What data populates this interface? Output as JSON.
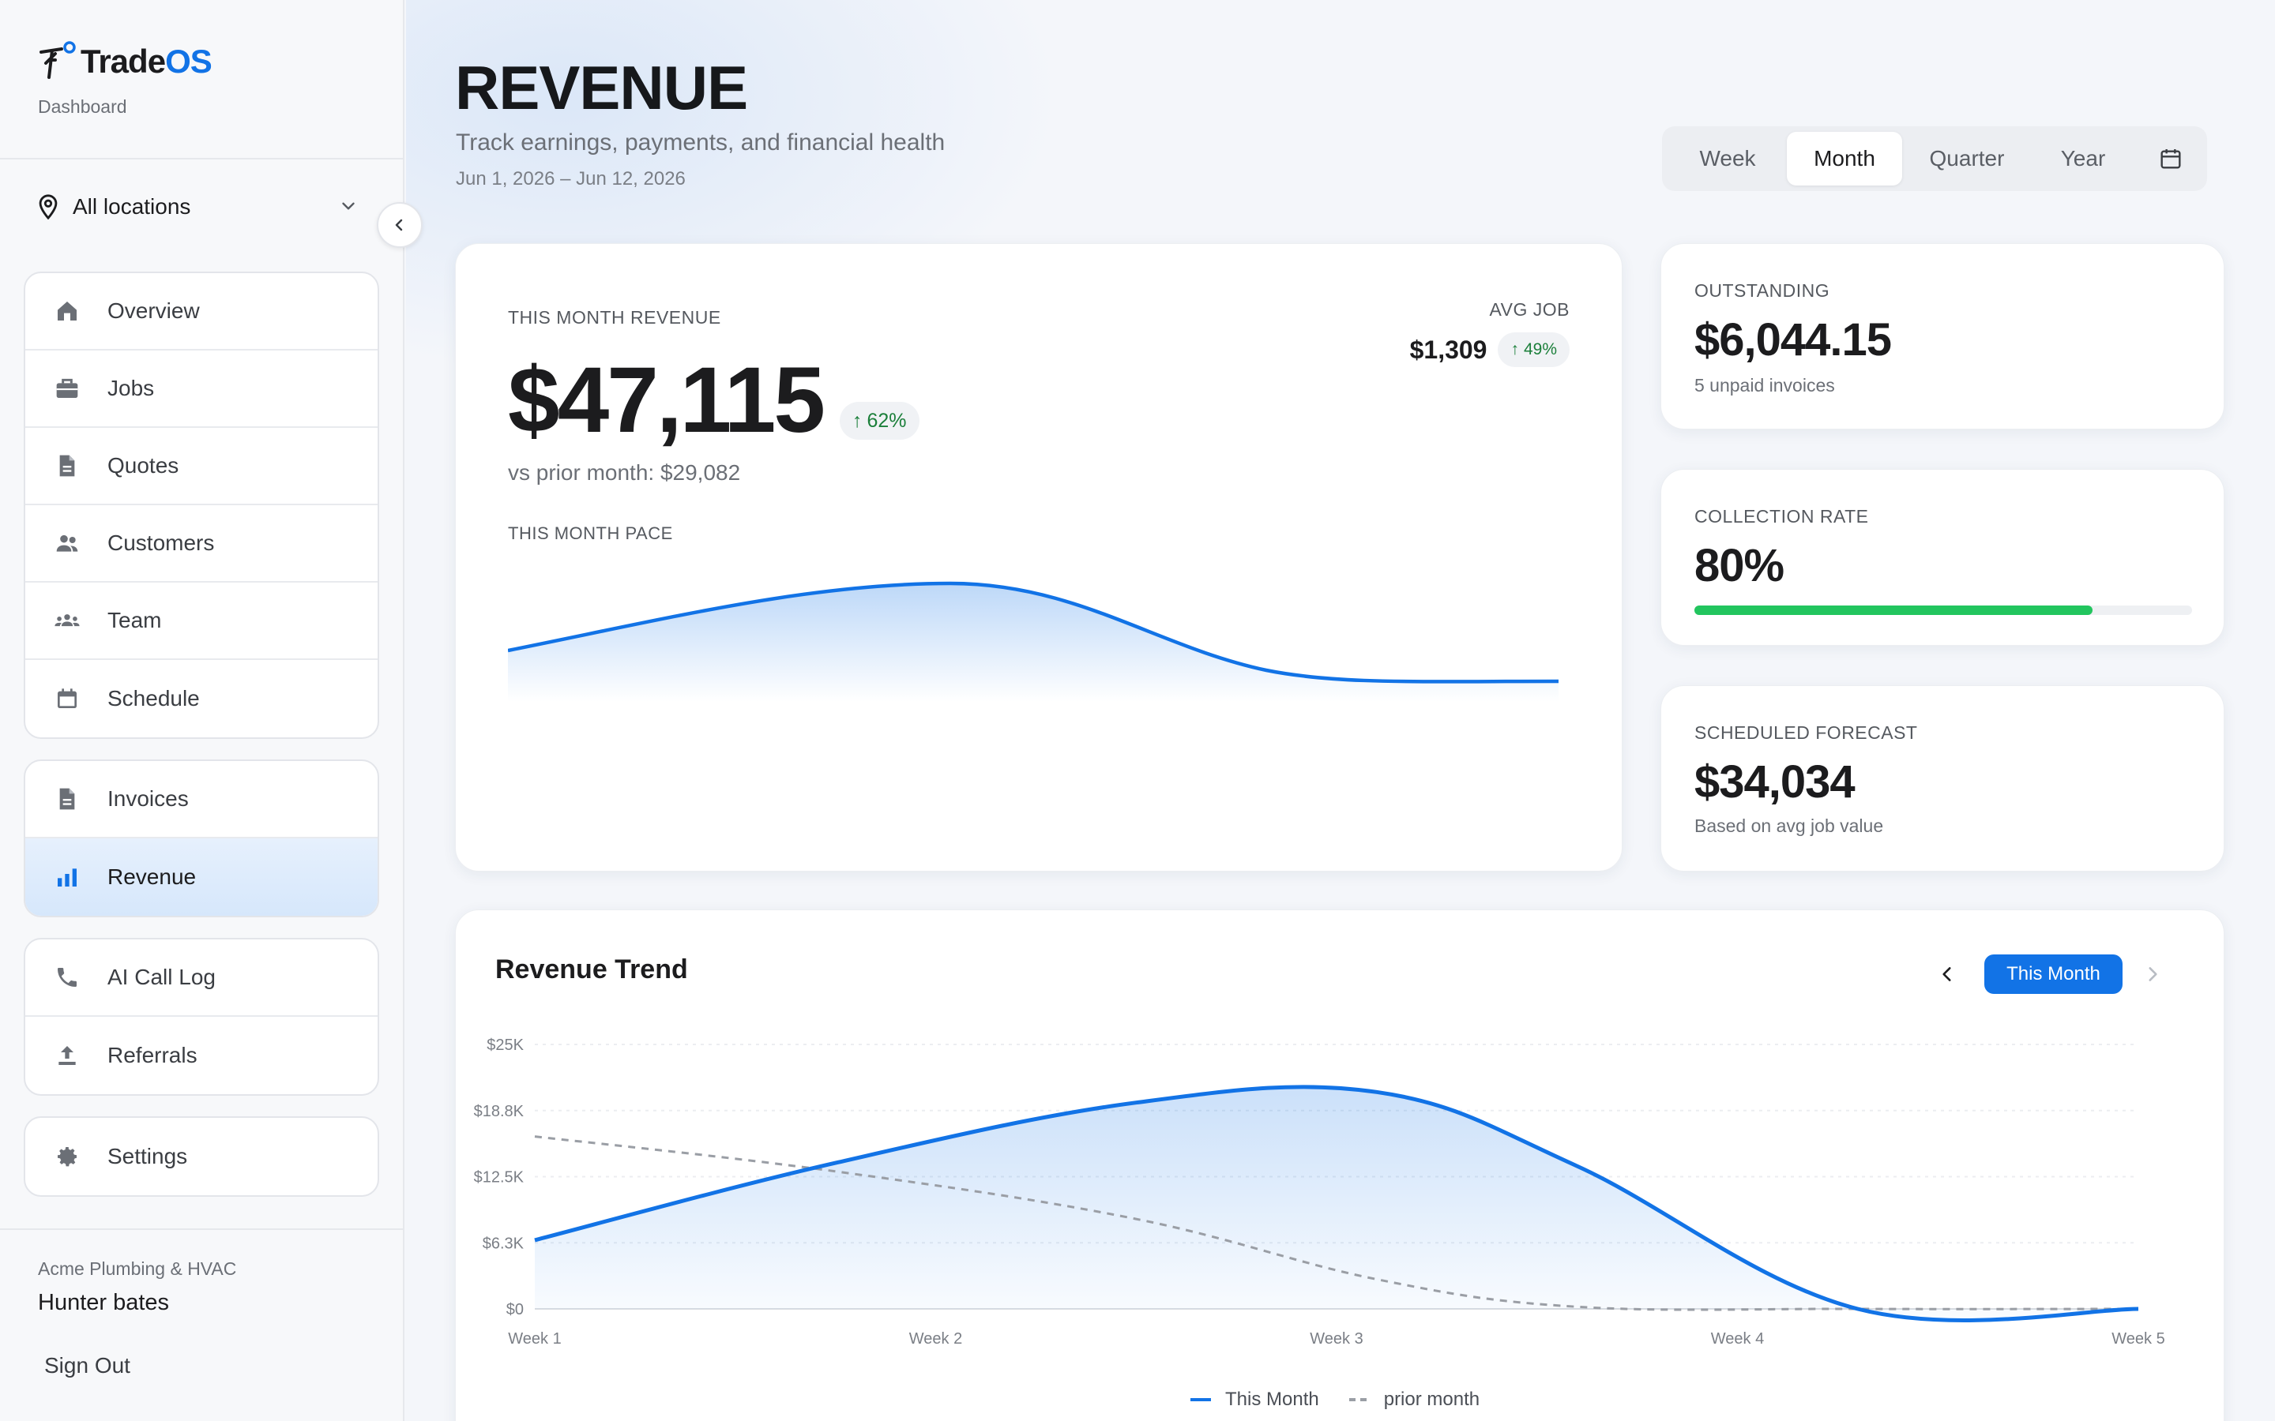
{
  "brand": {
    "name_left": "Trade",
    "name_right": "OS",
    "subtitle": "Dashboard"
  },
  "location": {
    "label": "All locations"
  },
  "nav": {
    "group1": [
      {
        "label": "Overview",
        "icon": "home-icon"
      },
      {
        "label": "Jobs",
        "icon": "briefcase-icon"
      },
      {
        "label": "Quotes",
        "icon": "document-icon"
      },
      {
        "label": "Customers",
        "icon": "people-icon"
      },
      {
        "label": "Team",
        "icon": "group-icon"
      },
      {
        "label": "Schedule",
        "icon": "calendar-icon"
      }
    ],
    "group2": [
      {
        "label": "Invoices",
        "icon": "document-icon"
      },
      {
        "label": "Revenue",
        "icon": "bar-chart-icon",
        "active": true
      }
    ],
    "group3": [
      {
        "label": "AI Call Log",
        "icon": "phone-icon"
      },
      {
        "label": "Referrals",
        "icon": "upload-icon"
      }
    ],
    "group4": [
      {
        "label": "Settings",
        "icon": "gear-icon"
      }
    ]
  },
  "footer": {
    "org": "Acme Plumbing & HVAC",
    "user": "Hunter bates",
    "signout": "Sign Out"
  },
  "header": {
    "title": "REVENUE",
    "subtitle": "Track earnings, payments, and financial health",
    "date_range": "Jun 1, 2026 – Jun 12, 2026"
  },
  "period": {
    "options": [
      "Week",
      "Month",
      "Quarter",
      "Year"
    ],
    "selected": "Month"
  },
  "revenue_card": {
    "label": "THIS MONTH REVENUE",
    "value": "$47,115",
    "change": "62%",
    "comparison": "vs prior month: $29,082",
    "avg_job_label": "AVG JOB",
    "avg_job_value": "$1,309",
    "avg_job_change": "49%",
    "pace_label": "THIS MONTH PACE"
  },
  "outstanding": {
    "label": "OUTSTANDING",
    "value": "$6,044.15",
    "sub": "5 unpaid invoices"
  },
  "collection": {
    "label": "COLLECTION RATE",
    "value": "80%",
    "progress": 0.8
  },
  "forecast": {
    "label": "SCHEDULED FORECAST",
    "value": "$34,034",
    "sub": "Based on avg job value"
  },
  "trend": {
    "title": "Revenue Trend",
    "period_button": "This Month"
  },
  "colors": {
    "accent": "#1273e6",
    "success": "#22c55e",
    "prior_line": "#9a9ea5"
  },
  "chart_data": {
    "type": "line",
    "categories": [
      "Week 1",
      "Week 2",
      "Week 3",
      "Week 4",
      "Week 5"
    ],
    "y_ticks": [
      "$0",
      "$6.3K",
      "$12.5K",
      "$18.8K",
      "$25K"
    ],
    "ylim": [
      0,
      25000
    ],
    "grid": true,
    "legend": "bottom-center",
    "series": [
      {
        "name": "This Month",
        "x": [
          1,
          1.75,
          2.5,
          3.1,
          3.6,
          4.3,
          5
        ],
        "values": [
          6500,
          13800,
          19500,
          20500,
          13500,
          0,
          0
        ]
      },
      {
        "name": "prior month",
        "x": [
          1,
          1.75,
          2.5,
          3.1,
          3.6,
          4.3,
          5
        ],
        "values": [
          16300,
          13000,
          8500,
          2800,
          200,
          0,
          0
        ]
      }
    ]
  }
}
